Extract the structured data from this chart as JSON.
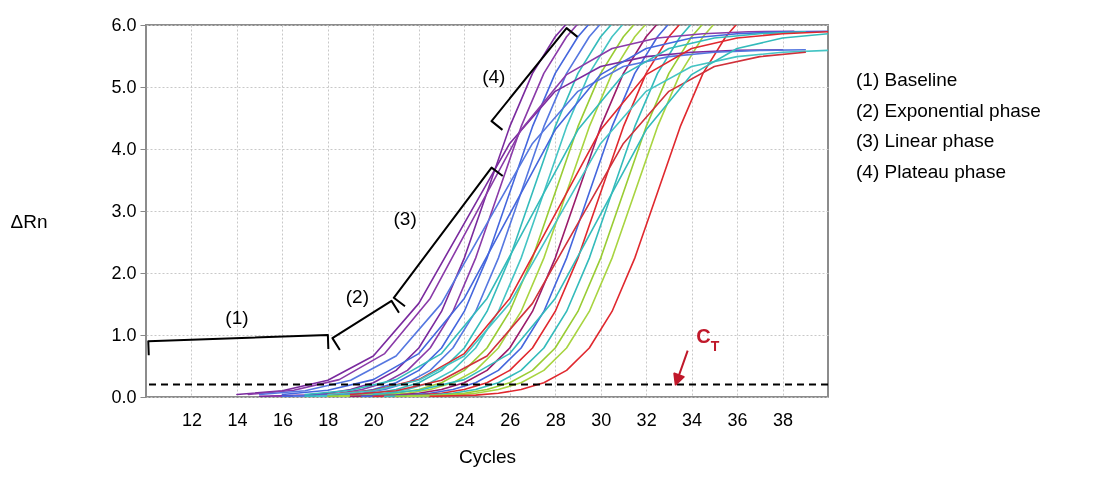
{
  "chart_data": {
    "type": "line",
    "xlabel": "Cycles",
    "ylabel": "ΔRn",
    "xlim": [
      10,
      40
    ],
    "ylim": [
      0,
      6
    ],
    "xticks": [
      12,
      14,
      16,
      18,
      20,
      22,
      24,
      26,
      28,
      30,
      32,
      34,
      36,
      38
    ],
    "yticks": [
      {
        "value": 0,
        "label": "0.0"
      },
      {
        "value": 1,
        "label": "1.0"
      },
      {
        "value": 2,
        "label": "2.0"
      },
      {
        "value": 3,
        "label": "3.0"
      },
      {
        "value": 4,
        "label": "4.0"
      },
      {
        "value": 5,
        "label": "5.0"
      },
      {
        "value": 6,
        "label": "6.0"
      }
    ],
    "grid": true,
    "ref_lines": [
      {
        "axis": "y",
        "value": 0.2,
        "color": "#000000",
        "line_style": "dashed"
      }
    ],
    "annotations": [
      "(1)",
      "(2)",
      "(3)",
      "(4)",
      "C$_{T}$",
      "(1) Baseline",
      "(2) Exponential phase",
      "(3) Linear phase",
      "(4) Plateau phase"
    ],
    "series": [
      {
        "color": "#7a2a9e",
        "x": [
          15,
          16,
          17,
          18,
          19,
          20,
          21,
          22,
          23,
          24,
          25,
          26,
          27,
          28,
          28.45
        ],
        "values": [
          0.01,
          0.02,
          0.03,
          0.06,
          0.12,
          0.23,
          0.43,
          0.79,
          1.38,
          2.24,
          3.3,
          4.36,
          5.22,
          5.81,
          6.0
        ]
      },
      {
        "color": "#8a3aa8",
        "x": [
          15.5,
          16.5,
          17.5,
          18.5,
          19.5,
          20.5,
          21.5,
          22.5,
          23.5,
          24.5,
          25.5,
          26.5,
          27.5,
          28.5,
          28.95
        ],
        "values": [
          0.01,
          0.02,
          0.03,
          0.06,
          0.12,
          0.23,
          0.43,
          0.79,
          1.38,
          2.24,
          3.3,
          4.36,
          5.22,
          5.81,
          6.0
        ]
      },
      {
        "color": "#4466dd",
        "x": [
          16,
          17,
          18,
          19,
          20,
          21,
          22,
          23,
          24,
          25,
          26,
          27,
          28,
          29,
          29.45
        ],
        "values": [
          0.01,
          0.02,
          0.03,
          0.06,
          0.12,
          0.23,
          0.43,
          0.79,
          1.38,
          2.24,
          3.3,
          4.36,
          5.22,
          5.81,
          6.0
        ]
      },
      {
        "color": "#5577e0",
        "x": [
          16.5,
          17.5,
          18.5,
          19.5,
          20.5,
          21.5,
          22.5,
          23.5,
          24.5,
          25.5,
          26.5,
          27.5,
          28.5,
          29.5,
          29.95
        ],
        "values": [
          0.01,
          0.02,
          0.03,
          0.06,
          0.12,
          0.23,
          0.43,
          0.79,
          1.38,
          2.24,
          3.3,
          4.36,
          5.22,
          5.81,
          6.0
        ]
      },
      {
        "color": "#33bbbb",
        "x": [
          17,
          18,
          19,
          20,
          21,
          22,
          23,
          24,
          25,
          26,
          27,
          28,
          29,
          30,
          30.45
        ],
        "values": [
          0.01,
          0.02,
          0.03,
          0.06,
          0.12,
          0.23,
          0.43,
          0.79,
          1.38,
          2.24,
          3.3,
          4.36,
          5.22,
          5.81,
          6.0
        ]
      },
      {
        "color": "#44c4c4",
        "x": [
          17.5,
          18.5,
          19.5,
          20.5,
          21.5,
          22.5,
          23.5,
          24.5,
          25.5,
          26.5,
          27.5,
          28.5,
          29.5,
          30.5,
          30.95
        ],
        "values": [
          0.01,
          0.02,
          0.03,
          0.06,
          0.12,
          0.23,
          0.43,
          0.79,
          1.38,
          2.24,
          3.3,
          4.36,
          5.22,
          5.81,
          6.0
        ]
      },
      {
        "color": "#99cc33",
        "x": [
          18,
          19,
          20,
          21,
          22,
          23,
          24,
          25,
          26,
          27,
          28,
          29,
          30,
          31,
          31.45
        ],
        "values": [
          0.01,
          0.02,
          0.03,
          0.06,
          0.12,
          0.23,
          0.43,
          0.79,
          1.38,
          2.24,
          3.3,
          4.36,
          5.22,
          5.81,
          6.0
        ]
      },
      {
        "color": "#a8d440",
        "x": [
          18.5,
          19.5,
          20.5,
          21.5,
          22.5,
          23.5,
          24.5,
          25.5,
          26.5,
          27.5,
          28.5,
          29.5,
          30.5,
          31.5,
          31.95
        ],
        "values": [
          0.01,
          0.02,
          0.03,
          0.06,
          0.12,
          0.23,
          0.43,
          0.79,
          1.38,
          2.24,
          3.3,
          4.36,
          5.22,
          5.81,
          6.0
        ]
      },
      {
        "color": "#9b1b6a",
        "x": [
          19,
          20,
          21,
          22,
          23,
          24,
          25,
          26,
          27,
          28,
          29,
          30,
          31,
          32,
          32.45
        ],
        "values": [
          0.01,
          0.02,
          0.03,
          0.06,
          0.12,
          0.23,
          0.43,
          0.79,
          1.38,
          2.24,
          3.3,
          4.36,
          5.22,
          5.81,
          6.0
        ]
      },
      {
        "color": "#4466dd",
        "x": [
          19.5,
          20.5,
          21.5,
          22.5,
          23.5,
          24.5,
          25.5,
          26.5,
          27.5,
          28.5,
          29.5,
          30.5,
          31.5,
          32.5,
          32.95
        ],
        "values": [
          0.01,
          0.02,
          0.03,
          0.06,
          0.12,
          0.23,
          0.43,
          0.79,
          1.38,
          2.24,
          3.3,
          4.36,
          5.22,
          5.81,
          6.0
        ]
      },
      {
        "color": "#e0282e",
        "x": [
          20,
          21,
          22,
          23,
          24,
          25,
          26,
          27,
          28,
          29,
          30,
          31,
          32,
          33,
          33.45
        ],
        "values": [
          0.01,
          0.02,
          0.03,
          0.06,
          0.12,
          0.23,
          0.43,
          0.79,
          1.38,
          2.24,
          3.3,
          4.36,
          5.22,
          5.81,
          6.0
        ]
      },
      {
        "color": "#33bbbb",
        "x": [
          20.5,
          21.5,
          22.5,
          23.5,
          24.5,
          25.5,
          26.5,
          27.5,
          28.5,
          29.5,
          30.5,
          31.5,
          32.5,
          33.5,
          33.95
        ],
        "values": [
          0.01,
          0.02,
          0.03,
          0.06,
          0.12,
          0.23,
          0.43,
          0.79,
          1.38,
          2.24,
          3.3,
          4.36,
          5.22,
          5.81,
          6.0
        ]
      },
      {
        "color": "#99cc33",
        "x": [
          21,
          22,
          23,
          24,
          25,
          26,
          27,
          28,
          29,
          30,
          31,
          32,
          33,
          34,
          34.45
        ],
        "values": [
          0.01,
          0.02,
          0.03,
          0.06,
          0.12,
          0.23,
          0.43,
          0.79,
          1.38,
          2.24,
          3.3,
          4.36,
          5.22,
          5.81,
          6.0
        ]
      },
      {
        "color": "#a8d440",
        "x": [
          21.5,
          22.5,
          23.5,
          24.5,
          25.5,
          26.5,
          27.5,
          28.5,
          29.5,
          30.5,
          31.5,
          32.5,
          33.5,
          34.5,
          34.95
        ],
        "values": [
          0.01,
          0.02,
          0.03,
          0.06,
          0.12,
          0.23,
          0.43,
          0.79,
          1.38,
          2.24,
          3.3,
          4.36,
          5.22,
          5.81,
          6.0
        ]
      },
      {
        "color": "#e0282e",
        "x": [
          22.5,
          23.5,
          24.5,
          25.5,
          26.5,
          27.5,
          28.5,
          29.5,
          30.5,
          31.5,
          32.5,
          33.5,
          34.5,
          35.5,
          35.95
        ],
        "values": [
          0.01,
          0.02,
          0.03,
          0.06,
          0.12,
          0.23,
          0.43,
          0.79,
          1.38,
          2.24,
          3.3,
          4.36,
          5.22,
          5.81,
          6.0
        ]
      },
      {
        "color": "#7a2a9e",
        "x": [
          14,
          16,
          18,
          20,
          22,
          24,
          26,
          28,
          30,
          32,
          34,
          36,
          38
        ],
        "values": [
          0.04,
          0.1,
          0.27,
          0.66,
          1.51,
          2.8,
          4.09,
          4.93,
          5.33,
          5.49,
          5.56,
          5.59,
          5.6
        ]
      },
      {
        "color": "#8a3aa8",
        "x": [
          14.5,
          16.5,
          18.5,
          20.5,
          22.5,
          24.5,
          26.5,
          28.5,
          30.5,
          32.5,
          34.5,
          36.5,
          38.5
        ],
        "values": [
          0.04,
          0.11,
          0.28,
          0.7,
          1.59,
          2.95,
          4.31,
          5.2,
          5.62,
          5.79,
          5.86,
          5.89,
          5.9
        ]
      },
      {
        "color": "#5577e0",
        "x": [
          15,
          17,
          19,
          21,
          23,
          25,
          27,
          29,
          31,
          33,
          35,
          37,
          39
        ],
        "values": [
          0.04,
          0.1,
          0.27,
          0.66,
          1.51,
          2.8,
          4.09,
          4.93,
          5.33,
          5.49,
          5.56,
          5.59,
          5.6
        ]
      },
      {
        "color": "#4466dd",
        "x": [
          16,
          18,
          20,
          22,
          24,
          26,
          28,
          30,
          32,
          34,
          36,
          38,
          40
        ],
        "values": [
          0.04,
          0.11,
          0.28,
          0.7,
          1.59,
          2.95,
          4.31,
          5.2,
          5.62,
          5.79,
          5.86,
          5.89,
          5.9
        ]
      },
      {
        "color": "#33bbbb",
        "x": [
          17,
          19,
          21,
          23,
          25,
          27,
          29,
          31,
          33,
          35,
          37,
          39
        ],
        "values": [
          0.04,
          0.11,
          0.28,
          0.7,
          1.59,
          2.95,
          4.31,
          5.2,
          5.62,
          5.79,
          5.86,
          5.89
        ]
      },
      {
        "color": "#e0282e",
        "x": [
          18,
          20,
          22,
          24,
          26,
          28,
          30,
          32,
          34,
          36,
          38,
          40
        ],
        "values": [
          0.04,
          0.11,
          0.28,
          0.7,
          1.59,
          2.95,
          4.31,
          5.2,
          5.62,
          5.79,
          5.86,
          5.89
        ]
      },
      {
        "color": "#44c4c4",
        "x": [
          18,
          20,
          22,
          24,
          26,
          28,
          30,
          32,
          34,
          36,
          38,
          40
        ],
        "values": [
          0.04,
          0.1,
          0.27,
          0.66,
          1.51,
          2.8,
          4.09,
          4.93,
          5.33,
          5.49,
          5.56,
          5.59
        ]
      },
      {
        "color": "#d0303a",
        "x": [
          19,
          21,
          23,
          25,
          27,
          29,
          31,
          33,
          35,
          37,
          39
        ],
        "values": [
          0.04,
          0.1,
          0.27,
          0.66,
          1.51,
          2.8,
          4.09,
          4.93,
          5.33,
          5.49,
          5.56
        ]
      },
      {
        "color": "#33bbbb",
        "x": [
          20,
          22,
          24,
          26,
          28,
          30,
          32,
          34,
          36,
          38,
          40
        ],
        "values": [
          0.04,
          0.11,
          0.28,
          0.7,
          1.59,
          2.95,
          4.31,
          5.2,
          5.62,
          5.79,
          5.86
        ]
      }
    ]
  }
}
